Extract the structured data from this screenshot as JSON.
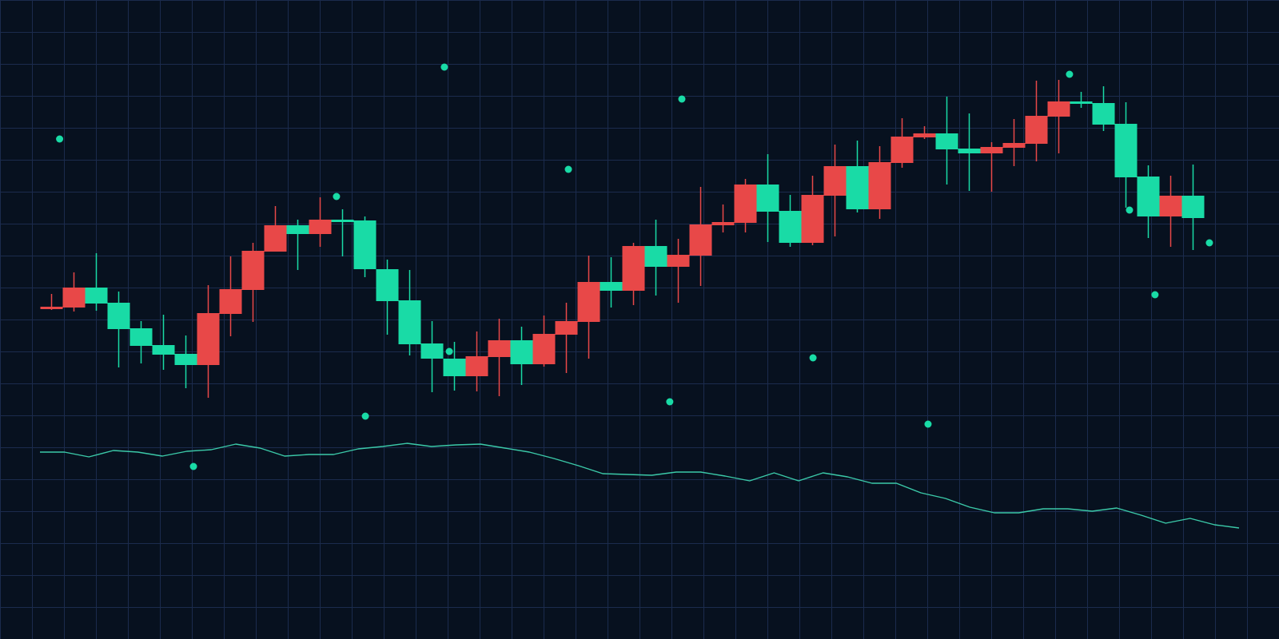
{
  "chart_data": {
    "type": "candlestick",
    "title": "",
    "xlabel": "",
    "ylabel": "",
    "grid": true,
    "legend": "none",
    "colors": {
      "background": "#07111f",
      "grid": "#1b2b4d",
      "up": "#e84848",
      "down": "#19dba6",
      "line": "#3bc9a8",
      "markers": "#19dba6"
    },
    "candles": [
      {
        "o": 413,
        "h": 432,
        "l": 412,
        "c": 416
      },
      {
        "o": 415,
        "h": 459,
        "l": 410,
        "c": 440
      },
      {
        "o": 440,
        "h": 483,
        "l": 411,
        "c": 420
      },
      {
        "o": 421,
        "h": 435,
        "l": 340,
        "c": 388
      },
      {
        "o": 389,
        "h": 398,
        "l": 345,
        "c": 367
      },
      {
        "o": 368,
        "h": 406,
        "l": 337,
        "c": 356
      },
      {
        "o": 357,
        "h": 380,
        "l": 314,
        "c": 343
      },
      {
        "o": 343,
        "h": 443,
        "l": 302,
        "c": 408
      },
      {
        "o": 407,
        "h": 479,
        "l": 379,
        "c": 438
      },
      {
        "o": 437,
        "h": 496,
        "l": 397,
        "c": 486
      },
      {
        "o": 485,
        "h": 542,
        "l": 485,
        "c": 518
      },
      {
        "o": 518,
        "h": 525,
        "l": 462,
        "c": 507
      },
      {
        "o": 507,
        "h": 553,
        "l": 491,
        "c": 525
      },
      {
        "o": 525,
        "h": 538,
        "l": 479,
        "c": 522
      },
      {
        "o": 524,
        "h": 529,
        "l": 453,
        "c": 463
      },
      {
        "o": 463,
        "h": 475,
        "l": 381,
        "c": 423
      },
      {
        "o": 424,
        "h": 462,
        "l": 355,
        "c": 369
      },
      {
        "o": 370,
        "h": 398,
        "l": 309,
        "c": 351
      },
      {
        "o": 351,
        "h": 372,
        "l": 311,
        "c": 329
      },
      {
        "o": 329,
        "h": 385,
        "l": 310,
        "c": 354
      },
      {
        "o": 353,
        "h": 401,
        "l": 304,
        "c": 374
      },
      {
        "o": 374,
        "h": 391,
        "l": 318,
        "c": 344
      },
      {
        "o": 344,
        "h": 405,
        "l": 341,
        "c": 382
      },
      {
        "o": 381,
        "h": 421,
        "l": 333,
        "c": 398
      },
      {
        "o": 397,
        "h": 480,
        "l": 351,
        "c": 447
      },
      {
        "o": 447,
        "h": 478,
        "l": 415,
        "c": 436
      },
      {
        "o": 436,
        "h": 496,
        "l": 418,
        "c": 492
      },
      {
        "o": 492,
        "h": 525,
        "l": 430,
        "c": 466
      },
      {
        "o": 466,
        "h": 501,
        "l": 421,
        "c": 481
      },
      {
        "o": 480,
        "h": 566,
        "l": 442,
        "c": 519
      },
      {
        "o": 518,
        "h": 544,
        "l": 509,
        "c": 522
      },
      {
        "o": 521,
        "h": 576,
        "l": 509,
        "c": 569
      },
      {
        "o": 569,
        "h": 607,
        "l": 497,
        "c": 535
      },
      {
        "o": 536,
        "h": 556,
        "l": 491,
        "c": 496
      },
      {
        "o": 496,
        "h": 580,
        "l": 493,
        "c": 556
      },
      {
        "o": 555,
        "h": 619,
        "l": 504,
        "c": 592
      },
      {
        "o": 592,
        "h": 624,
        "l": 534,
        "c": 538
      },
      {
        "o": 538,
        "h": 617,
        "l": 526,
        "c": 597
      },
      {
        "o": 596,
        "h": 652,
        "l": 590,
        "c": 629
      },
      {
        "o": 628,
        "h": 642,
        "l": 626,
        "c": 633
      },
      {
        "o": 633,
        "h": 679,
        "l": 569,
        "c": 613
      },
      {
        "o": 614,
        "h": 658,
        "l": 561,
        "c": 608
      },
      {
        "o": 608,
        "h": 622,
        "l": 560,
        "c": 616
      },
      {
        "o": 615,
        "h": 651,
        "l": 592,
        "c": 621
      },
      {
        "o": 620,
        "h": 699,
        "l": 598,
        "c": 655
      },
      {
        "o": 654,
        "h": 700,
        "l": 608,
        "c": 673
      },
      {
        "o": 673,
        "h": 685,
        "l": 665,
        "c": 670
      },
      {
        "o": 671,
        "h": 692,
        "l": 636,
        "c": 644
      },
      {
        "o": 645,
        "h": 672,
        "l": 540,
        "c": 578
      },
      {
        "o": 579,
        "h": 593,
        "l": 502,
        "c": 529
      },
      {
        "o": 529,
        "h": 580,
        "l": 491,
        "c": 555
      },
      {
        "o": 555,
        "h": 594,
        "l": 487,
        "c": 527
      }
    ],
    "line_series": [
      234,
      234,
      228,
      236,
      234,
      229,
      235,
      237,
      244,
      239,
      229,
      231,
      231,
      238,
      241,
      245,
      241,
      243,
      244,
      239,
      234,
      226,
      217,
      207,
      206,
      205,
      209,
      209,
      204,
      198,
      208,
      198,
      208,
      203,
      195,
      195,
      183,
      176,
      165,
      158,
      158,
      163,
      163,
      160,
      164,
      155,
      145,
      151,
      143,
      139
    ],
    "markers": [
      {
        "x": 0.36,
        "y": 626
      },
      {
        "x": 17.55,
        "y": 716
      },
      {
        "x": 28.16,
        "y": 676
      },
      {
        "x": 23.09,
        "y": 588
      },
      {
        "x": 12.73,
        "y": 554
      },
      {
        "x": 17.77,
        "y": 360
      },
      {
        "x": 14.02,
        "y": 279
      },
      {
        "x": 6.34,
        "y": 216
      },
      {
        "x": 27.62,
        "y": 297
      },
      {
        "x": 34.02,
        "y": 352
      },
      {
        "x": 39.16,
        "y": 269
      },
      {
        "x": 45.48,
        "y": 707
      },
      {
        "x": 48.16,
        "y": 537
      },
      {
        "x": 49.3,
        "y": 431
      },
      {
        "x": 51.73,
        "y": 496
      }
    ]
  }
}
